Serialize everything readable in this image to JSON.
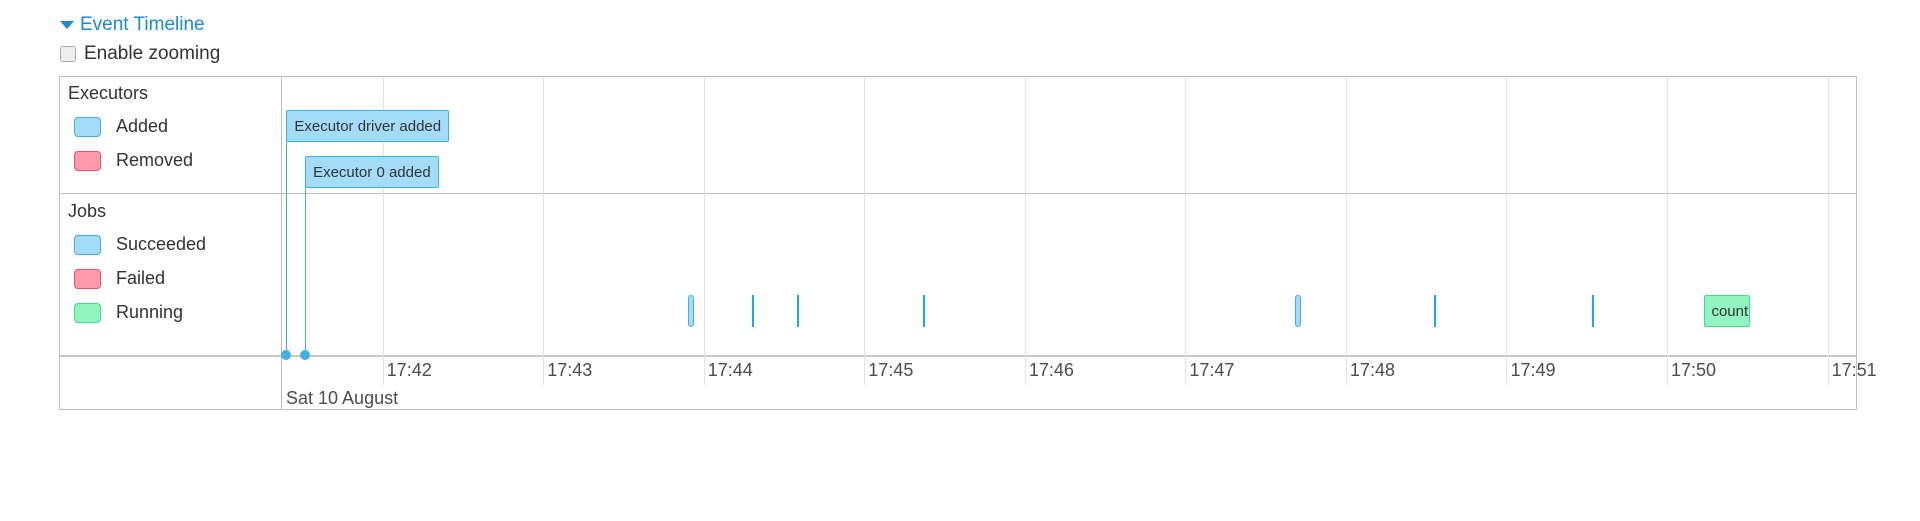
{
  "header": {
    "title": "Event Timeline",
    "expanded": true,
    "zoom_label": "Enable zooming",
    "zoom_checked": false
  },
  "legend": {
    "executors": {
      "title": "Executors",
      "items": [
        {
          "label": "Added",
          "color": "#a3dcf9",
          "border": "#3fb1e3"
        },
        {
          "label": "Removed",
          "color": "#ff9aac",
          "border": "#f0506e"
        }
      ]
    },
    "jobs": {
      "title": "Jobs",
      "items": [
        {
          "label": "Succeeded",
          "color": "#a3dcf9",
          "border": "#3fb1e3"
        },
        {
          "label": "Failed",
          "color": "#ff9aac",
          "border": "#f0506e"
        },
        {
          "label": "Running",
          "color": "#91f5c0",
          "border": "#3ee08a"
        }
      ]
    }
  },
  "axis": {
    "start": "17:41:22",
    "end": "17:51:11",
    "date_label": "Sat 10 August",
    "ticks": [
      "17:42",
      "17:43",
      "17:44",
      "17:45",
      "17:46",
      "17:47",
      "17:48",
      "17:49",
      "17:50",
      "17:51"
    ]
  },
  "executor_events": [
    {
      "label": "Executor driver added",
      "time": "17:41:24",
      "status": "added"
    },
    {
      "label": "Executor 0 added",
      "time": "17:41:31",
      "status": "added"
    }
  ],
  "jobs": [
    {
      "start": "17:43:54",
      "end": "17:43:56",
      "status": "succeeded"
    },
    {
      "start": "17:44:18",
      "end": "17:44:18",
      "status": "succeeded"
    },
    {
      "start": "17:44:35",
      "end": "17:44:35",
      "status": "succeeded"
    },
    {
      "start": "17:45:22",
      "end": "17:45:22",
      "status": "succeeded"
    },
    {
      "start": "17:47:41",
      "end": "17:47:43",
      "status": "succeeded"
    },
    {
      "start": "17:48:33",
      "end": "17:48:33",
      "status": "succeeded"
    },
    {
      "start": "17:49:32",
      "end": "17:49:32",
      "status": "succeeded"
    },
    {
      "start": "17:50:14",
      "end": "17:50:31",
      "status": "running",
      "label": "count"
    }
  ]
}
